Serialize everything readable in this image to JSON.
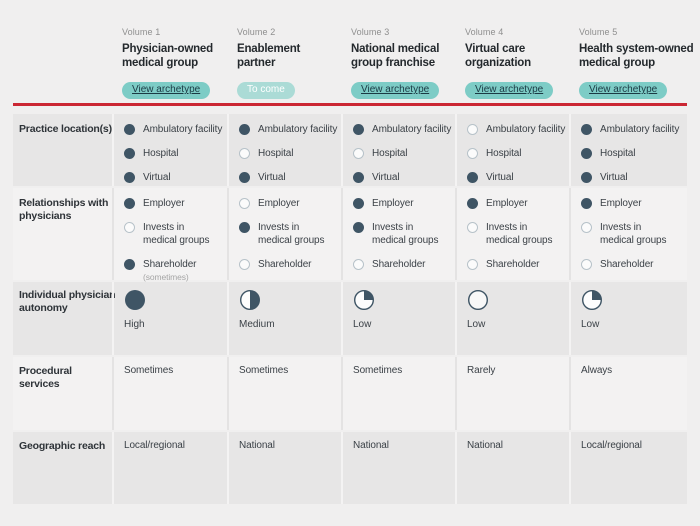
{
  "header": {
    "columns": [
      {
        "volume": "Volume 1",
        "title": "Physician-owned\nmedical group",
        "badge": "View archetype",
        "badge_style": "active"
      },
      {
        "volume": "Volume 2",
        "title": "Enablement\npartner",
        "badge": "To come",
        "badge_style": "upcoming"
      },
      {
        "volume": "Volume 3",
        "title": "National medical\ngroup franchise",
        "badge": "View archetype",
        "badge_style": "active"
      },
      {
        "volume": "Volume 4",
        "title": "Virtual care\norganization",
        "badge": "View archetype",
        "badge_style": "active"
      },
      {
        "volume": "Volume 5",
        "title": "Health system-owned\nmedical group",
        "badge": "View archetype",
        "badge_style": "active"
      }
    ]
  },
  "rows": [
    {
      "label": "Practice location(s)",
      "type": "dots",
      "cells": [
        {
          "items": [
            {
              "label": "Ambulatory facility",
              "filled": true
            },
            {
              "label": "Hospital",
              "filled": true
            },
            {
              "label": "Virtual",
              "filled": true
            }
          ]
        },
        {
          "items": [
            {
              "label": "Ambulatory facility",
              "filled": true
            },
            {
              "label": "Hospital",
              "filled": false
            },
            {
              "label": "Virtual",
              "filled": true
            }
          ]
        },
        {
          "items": [
            {
              "label": "Ambulatory facility",
              "filled": true
            },
            {
              "label": "Hospital",
              "filled": false
            },
            {
              "label": "Virtual",
              "filled": true
            }
          ]
        },
        {
          "items": [
            {
              "label": "Ambulatory facility",
              "filled": false
            },
            {
              "label": "Hospital",
              "filled": false
            },
            {
              "label": "Virtual",
              "filled": true
            }
          ]
        },
        {
          "items": [
            {
              "label": "Ambulatory facility",
              "filled": true
            },
            {
              "label": "Hospital",
              "filled": true
            },
            {
              "label": "Virtual",
              "filled": true
            }
          ]
        }
      ]
    },
    {
      "label": "Relationships with\nphysicians",
      "type": "dots",
      "cells": [
        {
          "items": [
            {
              "label": "Employer",
              "filled": true
            },
            {
              "label": "Invests in\nmedical groups",
              "filled": false
            },
            {
              "label": "Shareholder",
              "filled": true,
              "note": "(sometimes)"
            }
          ]
        },
        {
          "items": [
            {
              "label": "Employer",
              "filled": false
            },
            {
              "label": "Invests in\nmedical groups",
              "filled": true
            },
            {
              "label": "Shareholder",
              "filled": false
            }
          ]
        },
        {
          "items": [
            {
              "label": "Employer",
              "filled": true
            },
            {
              "label": "Invests in\nmedical groups",
              "filled": true
            },
            {
              "label": "Shareholder",
              "filled": false
            }
          ]
        },
        {
          "items": [
            {
              "label": "Employer",
              "filled": true
            },
            {
              "label": "Invests in\nmedical groups",
              "filled": false
            },
            {
              "label": "Shareholder",
              "filled": false
            }
          ]
        },
        {
          "items": [
            {
              "label": "Employer",
              "filled": true
            },
            {
              "label": "Invests in\nmedical groups",
              "filled": false
            },
            {
              "label": "Shareholder",
              "filled": false
            }
          ]
        }
      ]
    },
    {
      "label": "Individual physician\nautonomy",
      "type": "pie",
      "cells": [
        {
          "level": "full",
          "label": "High"
        },
        {
          "level": "half",
          "label": "Medium"
        },
        {
          "level": "quarter",
          "label": "Low"
        },
        {
          "level": "empty",
          "label": "Low"
        },
        {
          "level": "quarter",
          "label": "Low"
        }
      ]
    },
    {
      "label": "Procedural\nservices",
      "type": "text",
      "cells": [
        {
          "label": "Sometimes"
        },
        {
          "label": "Sometimes"
        },
        {
          "label": "Sometimes"
        },
        {
          "label": "Rarely"
        },
        {
          "label": "Always"
        }
      ]
    },
    {
      "label": "Geographic reach",
      "type": "text",
      "cells": [
        {
          "label": "Local/regional"
        },
        {
          "label": "National"
        },
        {
          "label": "National"
        },
        {
          "label": "National"
        },
        {
          "label": "Local/regional"
        }
      ]
    }
  ],
  "colors": {
    "accent_teal": "#7dccc6",
    "accent_teal_light": "#abdbd6",
    "divider_red": "#cb2733",
    "icon_dark": "#3f5565",
    "row_gray": "#e7e6e6",
    "row_light": "#f3f2f2",
    "page_bg": "#f0efef"
  }
}
